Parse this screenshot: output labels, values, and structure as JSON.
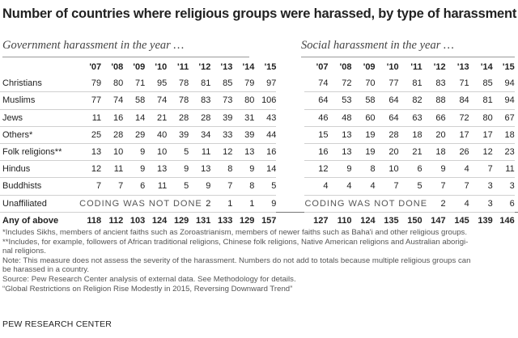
{
  "title": "Number of countries where religious groups were harassed, by type of harassment",
  "subheads": {
    "government": "Government harassment in the year …",
    "social": "Social harassment in the year …"
  },
  "years": [
    "'07",
    "'08",
    "'09",
    "'10",
    "'11",
    "'12",
    "'13",
    "'14",
    "'15"
  ],
  "rows": [
    {
      "label": "Christians",
      "gov": [
        "79",
        "80",
        "71",
        "95",
        "78",
        "81",
        "85",
        "79",
        "97"
      ],
      "soc": [
        "74",
        "72",
        "70",
        "77",
        "81",
        "83",
        "71",
        "85",
        "94"
      ]
    },
    {
      "label": "Muslims",
      "gov": [
        "77",
        "74",
        "58",
        "74",
        "78",
        "83",
        "73",
        "80",
        "106"
      ],
      "soc": [
        "64",
        "53",
        "58",
        "64",
        "82",
        "88",
        "84",
        "81",
        "94"
      ]
    },
    {
      "label": "Jews",
      "gov": [
        "11",
        "16",
        "14",
        "21",
        "28",
        "28",
        "39",
        "31",
        "43"
      ],
      "soc": [
        "46",
        "48",
        "60",
        "64",
        "63",
        "66",
        "72",
        "80",
        "67"
      ]
    },
    {
      "label": "Others*",
      "gov": [
        "25",
        "28",
        "29",
        "40",
        "39",
        "34",
        "33",
        "39",
        "44"
      ],
      "soc": [
        "15",
        "13",
        "19",
        "28",
        "18",
        "20",
        "17",
        "17",
        "18"
      ]
    },
    {
      "label": "Folk religions**",
      "gov": [
        "13",
        "10",
        "9",
        "10",
        "5",
        "11",
        "12",
        "13",
        "16"
      ],
      "soc": [
        "16",
        "13",
        "19",
        "20",
        "21",
        "18",
        "26",
        "12",
        "23"
      ]
    },
    {
      "label": "Hindus",
      "gov": [
        "12",
        "11",
        "9",
        "13",
        "9",
        "13",
        "8",
        "9",
        "14"
      ],
      "soc": [
        "12",
        "9",
        "8",
        "10",
        "6",
        "9",
        "4",
        "7",
        "11"
      ]
    },
    {
      "label": "Buddhists",
      "gov": [
        "7",
        "7",
        "6",
        "11",
        "5",
        "9",
        "7",
        "8",
        "5"
      ],
      "soc": [
        "4",
        "4",
        "4",
        "7",
        "5",
        "7",
        "7",
        "3",
        "3"
      ]
    }
  ],
  "unaffiliated": {
    "label": "Unaffiliated",
    "gov_note": "CODING WAS NOT DONE",
    "gov_values": [
      "2",
      "1",
      "1",
      "9"
    ],
    "soc_note": "CODING WAS NOT DONE",
    "soc_values": [
      "2",
      "4",
      "3",
      "6"
    ]
  },
  "total": {
    "label": "Any of above",
    "gov": [
      "118",
      "112",
      "103",
      "124",
      "129",
      "131",
      "133",
      "129",
      "157"
    ],
    "soc": [
      "127",
      "110",
      "124",
      "135",
      "150",
      "147",
      "145",
      "139",
      "146"
    ]
  },
  "notes": [
    "*Includes Sikhs, members of ancient faiths such as Zoroastrianism, members of newer faiths such as Baha'i and other religious groups.",
    "**Includes, for example, followers of African traditional religions, Chinese folk religions, Native American religions and Australian aborigi-",
    "nal religions.",
    "Note: This measure does not assess the severity of the harassment. Numbers do not add to totals because multiple religious groups can",
    "be harassed in a country.",
    "Source: Pew Research Center analysis of external data. See Methodology for details.",
    "“Global Restrictions on Religion Rise Modestly in 2015, Reversing Downward Trend”"
  ],
  "brand": "PEW RESEARCH CENTER"
}
